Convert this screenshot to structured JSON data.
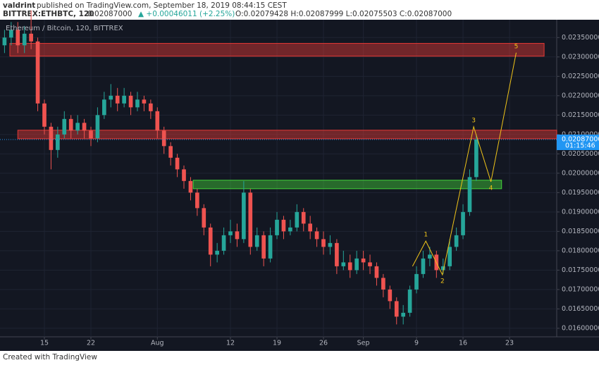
{
  "header": {
    "author": "valdrint",
    "published": "published on TradingView.com, September 18, 2019 08:44:15 CEST",
    "symbol": "BITTREX:ETHBTC, 120",
    "last": "0.02087000",
    "change": "▲ +0.00046011 (+2.25%)",
    "ohlc": "O:0.02079428 H:0.02087999 L:0.02075503 C:0.02087000"
  },
  "chart_data": {
    "type": "candlestick",
    "title": "Ethereum / Bitcoin, 120, BITTREX",
    "categories": [
      null,
      null,
      null,
      null,
      null,
      null,
      null,
      null,
      null,
      null,
      null,
      null,
      null,
      null,
      null,
      null,
      null,
      null,
      null,
      null,
      null,
      null,
      null,
      null,
      null,
      null,
      null,
      null,
      null,
      null,
      null,
      null,
      null,
      null,
      null,
      null,
      null,
      null,
      null,
      null,
      null,
      null,
      null,
      null,
      null,
      null,
      null,
      null,
      null,
      null,
      null,
      null,
      null,
      null,
      null,
      null,
      null,
      null,
      null,
      null,
      null,
      null,
      null,
      null,
      null,
      null,
      null,
      null,
      null,
      null,
      null,
      null
    ],
    "open": [
      0.0233,
      0.0235,
      0.0237,
      0.0233,
      0.0236,
      0.0234,
      0.0218,
      0.0212,
      0.0206,
      0.021,
      0.0214,
      0.0211,
      0.0213,
      0.0211,
      0.0209,
      0.0215,
      0.0219,
      0.022,
      0.0218,
      0.022,
      0.0217,
      0.0219,
      0.0218,
      0.0216,
      0.0211,
      0.0207,
      0.0204,
      0.0201,
      0.0198,
      0.0195,
      0.0191,
      0.0186,
      0.0179,
      0.018,
      0.0184,
      0.0185,
      0.0183,
      0.0195,
      0.0181,
      0.0184,
      0.0178,
      0.0184,
      0.0188,
      0.0185,
      0.0186,
      0.019,
      0.0187,
      0.0185,
      0.0183,
      0.0181,
      0.0182,
      0.0176,
      0.0177,
      0.0175,
      0.0178,
      0.0177,
      0.0176,
      0.0173,
      0.017,
      0.0167,
      0.0163,
      0.0164,
      0.017,
      0.0174,
      0.0178,
      0.0179,
      0.0175,
      0.0176,
      0.0181,
      0.0184,
      0.019,
      0.0199
    ],
    "high": [
      0.0237,
      0.0239,
      0.0239,
      0.0238,
      0.0242,
      0.0235,
      0.0219,
      0.0213,
      0.0212,
      0.0216,
      0.0215,
      0.0215,
      0.0214,
      0.0212,
      0.0217,
      0.0221,
      0.0223,
      0.0222,
      0.0222,
      0.0221,
      0.0221,
      0.022,
      0.0219,
      0.0217,
      0.0212,
      0.0208,
      0.0205,
      0.0202,
      0.0199,
      0.0196,
      0.0192,
      0.0187,
      0.0182,
      0.0186,
      0.0188,
      0.0187,
      0.0198,
      0.0196,
      0.0186,
      0.0185,
      0.0186,
      0.019,
      0.0189,
      0.0188,
      0.0192,
      0.0191,
      0.0189,
      0.0186,
      0.0185,
      0.0184,
      0.0183,
      0.018,
      0.0179,
      0.018,
      0.018,
      0.0179,
      0.0177,
      0.0174,
      0.0171,
      0.0168,
      0.0166,
      0.0171,
      0.0176,
      0.018,
      0.0181,
      0.018,
      0.0178,
      0.0183,
      0.0186,
      0.0192,
      0.0201,
      0.021
    ],
    "low": [
      0.0231,
      0.0233,
      0.0231,
      0.0231,
      0.0232,
      0.0216,
      0.021,
      0.0201,
      0.0204,
      0.0209,
      0.0209,
      0.021,
      0.0209,
      0.0207,
      0.0208,
      0.0214,
      0.0217,
      0.0216,
      0.0217,
      0.0215,
      0.0216,
      0.0216,
      0.0214,
      0.0209,
      0.0205,
      0.0202,
      0.0199,
      0.0196,
      0.0193,
      0.0189,
      0.0184,
      0.0176,
      0.0177,
      0.0179,
      0.0182,
      0.0181,
      0.0182,
      0.0179,
      0.018,
      0.0176,
      0.0177,
      0.0183,
      0.0183,
      0.0184,
      0.0185,
      0.0185,
      0.0183,
      0.0181,
      0.0179,
      0.0179,
      0.0174,
      0.0175,
      0.0173,
      0.0174,
      0.0175,
      0.0174,
      0.0171,
      0.0168,
      0.0165,
      0.0161,
      0.0161,
      0.0163,
      0.0169,
      0.0173,
      0.0176,
      0.0173,
      0.0174,
      0.0175,
      0.018,
      0.0183,
      0.0189,
      0.0198
    ],
    "close": [
      0.0235,
      0.0237,
      0.0233,
      0.0236,
      0.0234,
      0.0218,
      0.0212,
      0.0206,
      0.021,
      0.0214,
      0.0211,
      0.0213,
      0.0211,
      0.0209,
      0.0215,
      0.0219,
      0.022,
      0.0218,
      0.022,
      0.0217,
      0.0219,
      0.0218,
      0.0216,
      0.0211,
      0.0207,
      0.0204,
      0.0201,
      0.0198,
      0.0195,
      0.0191,
      0.0186,
      0.0179,
      0.018,
      0.0184,
      0.0185,
      0.0183,
      0.0195,
      0.0181,
      0.0184,
      0.0178,
      0.0184,
      0.0188,
      0.0185,
      0.0186,
      0.019,
      0.0187,
      0.0185,
      0.0183,
      0.0181,
      0.0182,
      0.0176,
      0.0177,
      0.0175,
      0.0178,
      0.0177,
      0.0176,
      0.0173,
      0.017,
      0.0167,
      0.0163,
      0.0164,
      0.017,
      0.0174,
      0.0178,
      0.0179,
      0.0175,
      0.0176,
      0.0181,
      0.0184,
      0.019,
      0.0199,
      0.02087
    ],
    "up_color": "#26a69a",
    "down_color": "#ef5350",
    "xlim": [
      -0.68,
      83.1
    ],
    "xticks": [
      {
        "value": 6,
        "label": "15"
      },
      {
        "value": 13,
        "label": "22"
      },
      {
        "value": 23,
        "label": "Aug"
      },
      {
        "value": 34,
        "label": "12"
      },
      {
        "value": 41,
        "label": "19"
      },
      {
        "value": 48,
        "label": "26"
      },
      {
        "value": 54,
        "label": "Sep"
      },
      {
        "value": 62,
        "label": "9"
      },
      {
        "value": 69,
        "label": "16"
      },
      {
        "value": 76,
        "label": "23"
      }
    ],
    "ylim": [
      0.01578,
      0.02396
    ],
    "yticks": [
      {
        "value": 0.016,
        "label": "0.01600000"
      },
      {
        "value": 0.0165,
        "label": "0.01650000"
      },
      {
        "value": 0.017,
        "label": "0.01700000"
      },
      {
        "value": 0.0175,
        "label": "0.01750000"
      },
      {
        "value": 0.018,
        "label": "0.01800000"
      },
      {
        "value": 0.0185,
        "label": "0.01850000"
      },
      {
        "value": 0.019,
        "label": "0.01900000"
      },
      {
        "value": 0.0195,
        "label": "0.01950000"
      },
      {
        "value": 0.02,
        "label": "0.02000000"
      },
      {
        "value": 0.0205,
        "label": "0.02050000"
      },
      {
        "value": 0.021,
        "label": "0.02100000"
      },
      {
        "value": 0.0215,
        "label": "0.02150000"
      },
      {
        "value": 0.022,
        "label": "0.02200000"
      },
      {
        "value": 0.0225,
        "label": "0.02250000"
      },
      {
        "value": 0.023,
        "label": "0.02300000"
      },
      {
        "value": 0.0235,
        "label": "0.02350000"
      }
    ],
    "grid": true,
    "last_price": 0.02087,
    "last_price_label": "0.02087000",
    "countdown": "01:15:46",
    "zones": [
      {
        "color": "#e53935",
        "range": [
          0.02302,
          0.02335
        ],
        "xrange": [
          0.8,
          81.2
        ]
      },
      {
        "color": "#e53935",
        "range": [
          0.02089,
          0.02111
        ],
        "xrange": [
          2.0,
          83.1
        ]
      },
      {
        "color": "#43d13a",
        "range": [
          0.0196,
          0.01982
        ],
        "xrange": [
          28.4,
          74.8
        ]
      }
    ],
    "wave": {
      "color": "#f0c419",
      "x": [
        61.4,
        63.4,
        65.9,
        70.6,
        73.2,
        77.0
      ],
      "y": [
        0.0176,
        0.01825,
        0.01738,
        0.0212,
        0.01978,
        0.02311
      ],
      "labels": [
        null,
        "1",
        "2",
        "3",
        "4",
        "5"
      ]
    }
  },
  "footer": "Created with TradingView"
}
